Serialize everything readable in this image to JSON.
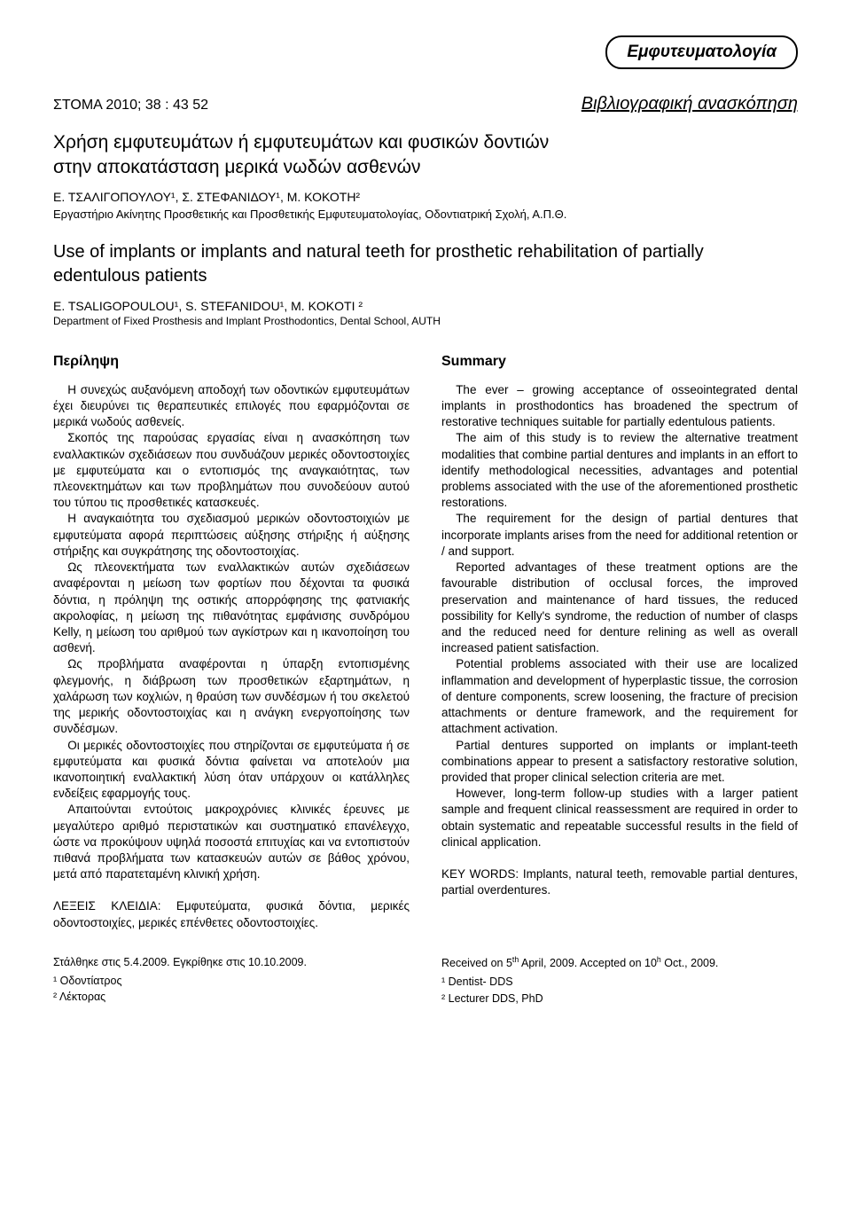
{
  "header": {
    "category": "Εμφυτευματολογία",
    "journal_ref": "ΣTOMA 2010; 38 : 43  52",
    "review_label": "Bιβλιογραφική ανασκόπηση"
  },
  "title_gr_line1": "Χρήση εμφυτευμάτων ή εμφυτευμάτων και φυσικών δοντιών",
  "title_gr_line2": "στην αποκατάσταση μερικά νωδών ασθενών",
  "authors_gr": "Ε. ΤΣΑΛΙΓΟΠΟΥΛΟΥ¹, Σ. ΣΤΕΦΑΝΙΔΟΥ¹, Μ. ΚΟΚΟΤΗ²",
  "affil_gr": "Εργαστήριο Ακίνητης Προσθετικής και Προσθετικής Εμφυτευματολογίας, Οδοντιατρική Σχολή, Α.Π.Θ.",
  "title_en_line1": "Use of implants or implants and natural teeth for prosthetic rehabilitation of partially",
  "title_en_line2": "edentulous patients",
  "authors_en": "E. TSALIGOPOULOU¹, S. STEFANIDOU¹, M. KOKOTI ²",
  "affil_en": "Department of Fixed Prosthesis and Implant Prosthodontics, Dental School, AUTH",
  "left": {
    "heading": "Περίληψη",
    "p1": "Η συνεχώς αυξανόμενη αποδοχή των οδοντικών εμφυτευμάτων έχει διευρύνει τις θεραπευτικές επιλογές που εφαρμόζονται σε μερικά νωδούς ασθενείς.",
    "p2": "Σκοπός της παρούσας εργασίας είναι η ανασκόπηση των εναλλακτικών σχεδιάσεων που συνδυάζουν μερικές οδοντοστοιχίες με εμφυτεύματα και ο εντοπισμός της αναγκαιότητας, των πλεονεκτημάτων και των προβλημάτων που συνοδεύουν αυτού του τύπου τις προσθετικές κατασκευές.",
    "p3": "Η αναγκαιότητα του σχεδιασμού μερικών οδοντοστοιχιών με εμφυτεύματα αφορά περιπτώσεις αύξησης στήριξης ή αύξησης στήριξης και συγκράτησης της οδοντοστοιχίας.",
    "p4": "Ως πλεονεκτήματα των εναλλακτικών αυτών σχεδιάσεων αναφέρονται η μείωση των φορτίων που δέχονται τα φυσικά δόντια, η πρόληψη της οστικής απορρόφησης της φατνιακής ακρολοφίας, η μείωση της πιθανότητας εμφάνισης συνδρόμου Kelly, η μείωση του αριθμού των αγκίστρων και η ικανοποίηση του ασθενή.",
    "p5": "Ως προβλήματα αναφέρονται η ύπαρξη εντοπισμένης φλεγμονής, η διάβρωση των προσθετικών εξαρτημάτων, η χαλάρωση των κοχλιών, η θραύση των συνδέσμων ή του σκελετού της μερικής οδοντοστοιχίας και η ανάγκη ενεργοποίησης των συνδέσμων.",
    "p6": "Οι μερικές οδοντοστοιχίες που στηρίζονται σε εμφυτεύματα ή σε εμφυτεύματα και φυσικά δόντια φαίνεται να αποτελούν μια ικανοποιητική εναλλακτική λύση όταν υπάρχουν οι κατάλληλες ενδείξεις εφαρμογής τους.",
    "p7": "Απαιτούνται εντούτοις μακροχρόνιες κλινικές έρευνες με μεγαλύτερο αριθμό περιστατικών και συστηματικό επανέλεγχο, ώστε να προκύψουν υψηλά ποσοστά επιτυχίας και να εντοπιστούν πιθανά προβλήματα των κατασκευών αυτών σε βάθος χρόνου, μετά από παρατεταμένη κλινική χρήση.",
    "keywords": "ΛEΞEIΣ KΛEIΔIA: Εμφυτεύματα, φυσικά δόντια, μερικές οδοντοστοιχίες, μερικές επένθετες οδοντοστοιχίες."
  },
  "right": {
    "heading": "Summary",
    "p1": "The ever – growing acceptance of osseointegrated dental implants in prosthodontics has broadened the spectrum of restorative techniques suitable for partially edentulous patients.",
    "p2": "The aim of this study is to review the alternative treatment modalities that combine partial dentures and implants in an effort to identify methodological necessities, advantages and potential problems associated with the use of the aforementioned prosthetic restorations.",
    "p3": "The requirement for the design of partial dentures that incorporate implants arises from the need for additional retention or / and support.",
    "p4": "Reported advantages of these treatment options are the favourable distribution of occlusal forces, the improved preservation and maintenance of hard tissues, the reduced possibility for Kelly's syndrome, the reduction of number of clasps and the reduced need for denture relining as well as overall increased patient satisfaction.",
    "p5": "Potential problems associated with their use are localized inflammation and development of hyperplastic tissue, the corrosion of denture components, screw loosening, the fracture of precision attachments or denture framework, and the requirement for attachment activation.",
    "p6": "Partial dentures supported on implants or implant-teeth combinations appear to present a satisfactory restorative solution, provided that proper clinical selection criteria are met.",
    "p7": "However, long-term follow-up studies with a larger patient sample and frequent clinical reassessment are required in order to obtain systematic and repeatable successful results in the field of clinical application.",
    "keywords": "KEY WORDS: Implants, natural teeth, removable partial dentures, partial overdentures."
  },
  "footer": {
    "left_dates": "Στάλθηκε στις 5.4.2009. Eγκρίθηκε στις 10.10.2009.",
    "left_note1": "¹ Οδοντίατρος",
    "left_note2": "² Λέκτορας",
    "right_dates_prefix": "Received on  5",
    "right_dates_mid": " April, 2009.  Accepted  on  10",
    "right_dates_suffix": "  Oct., 2009.",
    "right_note1": "¹ Dentist- DDS",
    "right_note2": "² Lecturer DDS, PhD"
  }
}
